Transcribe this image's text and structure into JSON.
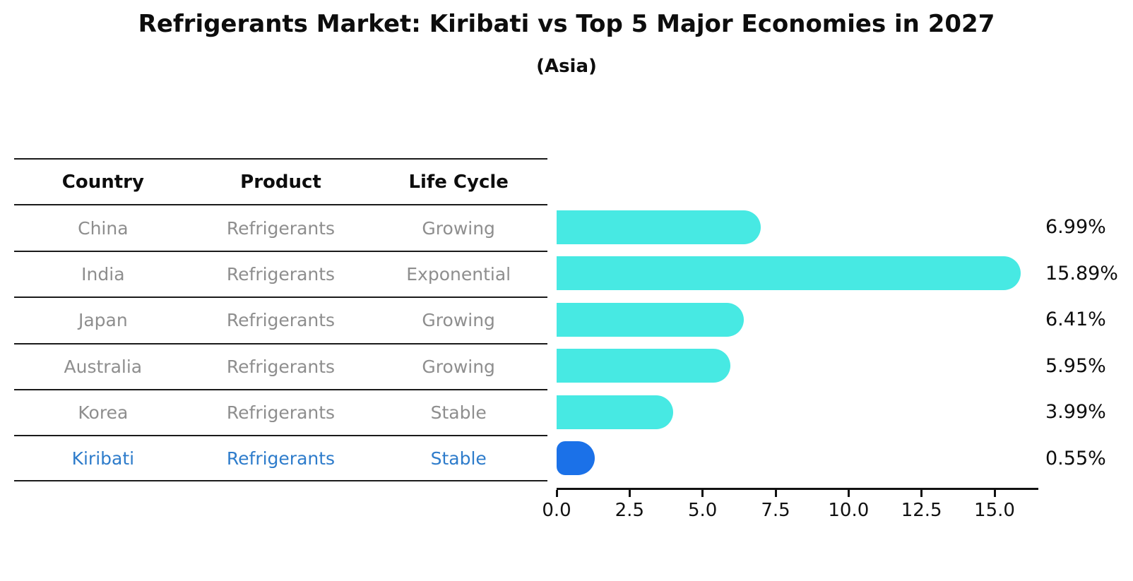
{
  "title": "Refrigerants Market: Kiribati vs Top 5 Major Economies in 2027",
  "subtitle": "(Asia)",
  "table": {
    "headers": [
      "Country",
      "Product",
      "Life Cycle"
    ],
    "rows": [
      {
        "country": "China",
        "product": "Refrigerants",
        "life_cycle": "Growing"
      },
      {
        "country": "India",
        "product": "Refrigerants",
        "life_cycle": "Exponential"
      },
      {
        "country": "Japan",
        "product": "Refrigerants",
        "life_cycle": "Growing"
      },
      {
        "country": "Australia",
        "product": "Refrigerants",
        "life_cycle": "Growing"
      },
      {
        "country": "Korea",
        "product": "Refrigerants",
        "life_cycle": "Stable"
      },
      {
        "country": "Kiribati",
        "product": "Refrigerants",
        "life_cycle": "Stable"
      }
    ],
    "highlight_row": 5
  },
  "chart_data": {
    "type": "bar",
    "orientation": "horizontal",
    "categories": [
      "China",
      "India",
      "Japan",
      "Australia",
      "Korea",
      "Kiribati"
    ],
    "values": [
      6.99,
      15.89,
      6.41,
      5.95,
      3.99,
      0.55
    ],
    "labels": [
      "6.99%",
      "15.89%",
      "6.41%",
      "5.95%",
      "3.99%",
      "0.55%"
    ],
    "x_ticks": [
      0.0,
      2.5,
      5.0,
      7.5,
      10.0,
      12.5,
      15.0
    ],
    "x_tick_labels": [
      "0.0",
      "2.5",
      "5.0",
      "7.5",
      "10.0",
      "12.5",
      "15.0"
    ],
    "xlim": [
      0,
      16.5
    ],
    "grid": false,
    "legend": null,
    "highlight_index": 5
  },
  "colors": {
    "bar_cyan": "#47E9E3",
    "bar_blue": "#1B71E8",
    "highlight_text": "#2E7CCB",
    "row_text": "#8E8E8E",
    "title_text": "#0D0D0D",
    "axis": "#111111"
  }
}
